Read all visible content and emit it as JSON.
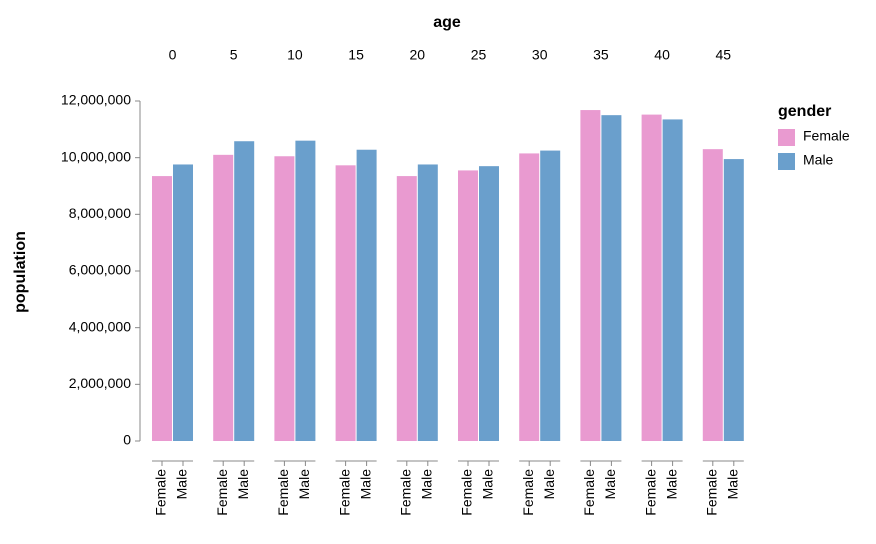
{
  "chart_data": {
    "type": "bar",
    "title": "age",
    "y_label": "population",
    "legend_title": "gender",
    "categories": [
      0,
      5,
      10,
      15,
      20,
      25,
      30,
      35,
      40,
      45
    ],
    "series": [
      {
        "name": "Female",
        "color": "#e99ad0",
        "values": [
          9350000,
          10100000,
          10050000,
          9730000,
          9350000,
          9550000,
          10150000,
          11680000,
          11520000,
          10300000
        ]
      },
      {
        "name": "Male",
        "color": "#6a9fcc",
        "values": [
          9760000,
          10580000,
          10600000,
          10280000,
          9760000,
          9700000,
          10250000,
          11500000,
          11350000,
          9950000
        ]
      }
    ],
    "ylim": [
      0,
      12000000
    ],
    "yticks": [
      0,
      {
        "value": 2000000,
        "label": "2,000,000"
      },
      {
        "value": 4000000,
        "label": "4,000,000"
      },
      {
        "value": 6000000,
        "label": "6,000,000"
      },
      {
        "value": 8000000,
        "label": "8,000,000"
      },
      {
        "value": 10000000,
        "label": "10,000,000"
      },
      {
        "value": 12000000,
        "label": "12,000,000"
      }
    ]
  }
}
